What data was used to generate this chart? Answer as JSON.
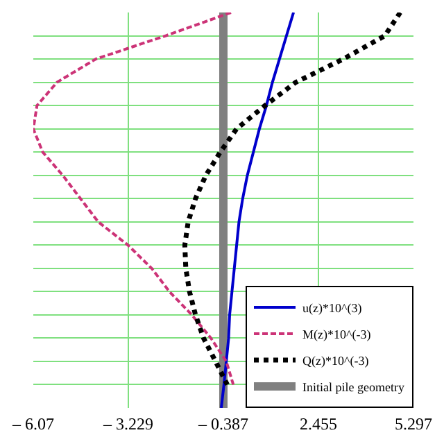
{
  "chart_data": {
    "type": "line",
    "orientation": "horizontal",
    "categories": [
      null,
      null,
      null,
      null,
      null,
      null,
      null,
      null,
      null,
      null,
      null,
      null,
      null,
      null,
      null,
      null,
      null,
      null
    ],
    "xlim": [
      -6.07,
      5.297
    ],
    "xticks": [
      {
        "value": -6.07,
        "label": "– 6.07"
      },
      {
        "value": -3.229,
        "label": "– 3.229"
      },
      {
        "value": -0.387,
        "label": "– 0.387"
      },
      2.455,
      5.297
    ],
    "grid": true,
    "legend": "bottom right",
    "marker": "none",
    "series": [
      {
        "name": "u(z)*10^(3)",
        "color": "#0000cc",
        "line_style": "solid",
        "values": [
          1.71,
          1.5,
          1.29,
          1.08,
          0.9,
          0.69,
          0.51,
          0.33,
          0.19,
          0.08,
          0.01,
          -0.06,
          -0.13,
          -0.2,
          -0.23,
          -0.3,
          -0.37,
          -0.45
        ]
      },
      {
        "name": "M(z)*10^(-3)",
        "color": "#cc3377",
        "line_style": "dashed",
        "values": [
          -0.16,
          -2.11,
          -4.2,
          -5.36,
          -5.96,
          -6.07,
          -5.79,
          -5.19,
          -4.66,
          -4.13,
          -3.24,
          -2.53,
          -2.0,
          -1.33,
          -0.76,
          -0.3,
          -0.09,
          null
        ]
      },
      {
        "name": "Q(z)*10^(-3)",
        "color": "#000000",
        "line_style": "dotted",
        "values": [
          4.9,
          4.44,
          3.2,
          1.78,
          0.86,
          0.01,
          -0.48,
          -0.91,
          -1.22,
          -1.44,
          -1.54,
          -1.51,
          -1.4,
          -1.22,
          -0.98,
          -0.62,
          -0.27,
          null
        ]
      },
      {
        "name": "Initial pile geometry",
        "color": "#808080",
        "line_style": "solid",
        "values": [
          -0.387,
          -0.387,
          -0.387,
          -0.387,
          -0.387,
          -0.387,
          -0.387,
          -0.387,
          -0.387,
          -0.387,
          -0.387,
          -0.387,
          -0.387,
          -0.387,
          -0.387,
          -0.387,
          -0.387,
          -0.387
        ]
      }
    ]
  }
}
